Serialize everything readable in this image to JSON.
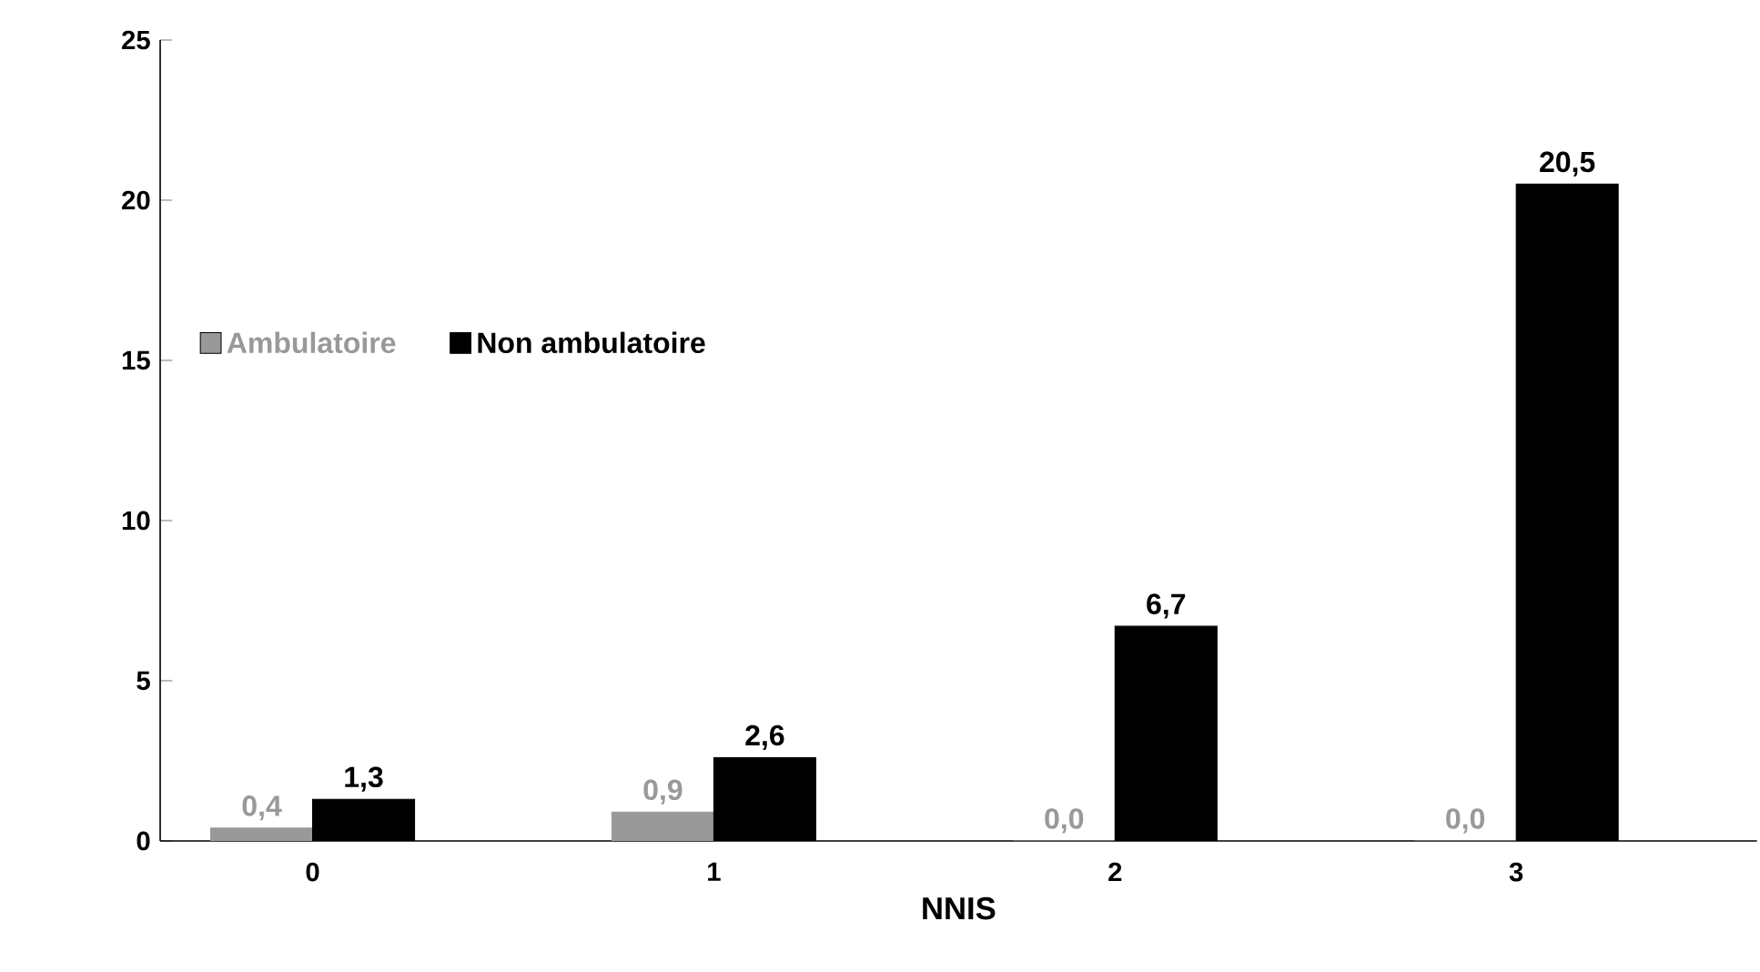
{
  "chart_data": {
    "type": "bar",
    "xlabel": "NNIS",
    "categories": [
      "0",
      "1",
      "2",
      "3"
    ],
    "series": [
      {
        "name": "Ambulatoire",
        "color": "#999999",
        "values": [
          0.4,
          0.9,
          0.0,
          0.0
        ],
        "value_labels": [
          "0,4",
          "0,9",
          "0,0",
          "0,0"
        ]
      },
      {
        "name": "Non ambulatoire",
        "color": "#000000",
        "values": [
          1.3,
          2.6,
          6.7,
          20.5
        ],
        "value_labels": [
          "1,3",
          "2,6",
          "6,7",
          "20,5"
        ]
      }
    ],
    "ylim": [
      0,
      25
    ],
    "yticks": [
      0,
      5,
      10,
      15,
      20,
      25
    ],
    "grid": false,
    "legend": "left"
  }
}
